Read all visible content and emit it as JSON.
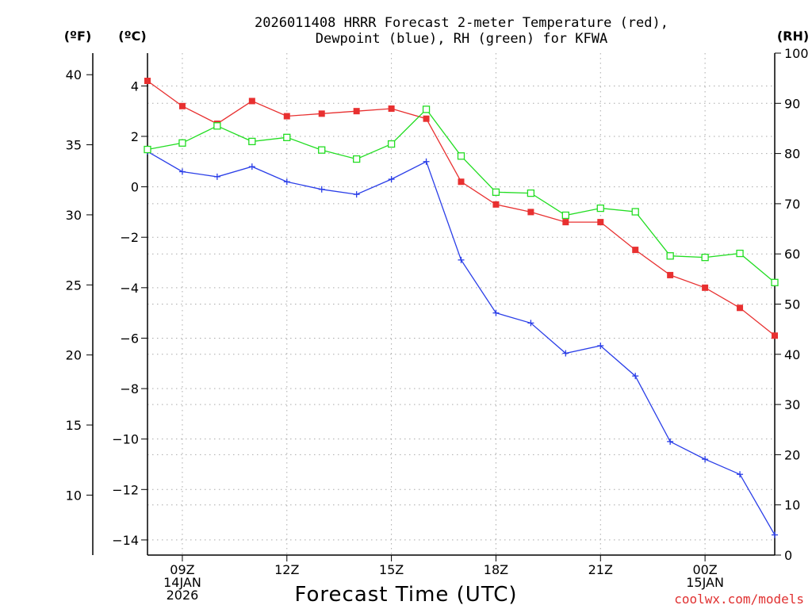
{
  "chart_data": {
    "type": "line",
    "title_line1": "2026011408 HRRR Forecast 2-meter Temperature (red),",
    "title_line2": "Dewpoint (blue), RH (green) for KFWA",
    "xlabel": "Forecast Time (UTC)",
    "credit": "coolwx.com/models",
    "left_unit_f": "(ºF)",
    "left_unit_c": "(ºC)",
    "right_unit": "(RH)",
    "x_hours": [
      8,
      9,
      10,
      11,
      12,
      13,
      14,
      15,
      16,
      17,
      18,
      19,
      20,
      21,
      22,
      23,
      24,
      25,
      26
    ],
    "xlim": [
      8,
      26
    ],
    "x_ticks": [
      {
        "hour": 9,
        "lines": [
          "09Z",
          "14JAN",
          "2026"
        ]
      },
      {
        "hour": 12,
        "lines": [
          "12Z"
        ]
      },
      {
        "hour": 15,
        "lines": [
          "15Z"
        ]
      },
      {
        "hour": 18,
        "lines": [
          "18Z"
        ]
      },
      {
        "hour": 21,
        "lines": [
          "21Z"
        ]
      },
      {
        "hour": 24,
        "lines": [
          "00Z",
          "15JAN"
        ]
      }
    ],
    "celsius_axis": {
      "ylim": [
        -14.6,
        5.3
      ],
      "ticks": [
        4,
        2,
        0,
        -2,
        -4,
        -6,
        -8,
        -10,
        -12,
        -14
      ],
      "labels": [
        "4",
        "2",
        "0",
        "−2",
        "−4",
        "−6",
        "−8",
        "−10",
        "−12",
        "−14"
      ]
    },
    "fahrenheit_axis": {
      "ticks": [
        40,
        35,
        30,
        25,
        20,
        15,
        10
      ],
      "labels": [
        "40",
        "35",
        "30",
        "25",
        "20",
        "15",
        "10"
      ]
    },
    "rh_axis": {
      "ylim": [
        0,
        100
      ],
      "ticks": [
        100,
        90,
        80,
        70,
        60,
        50,
        40,
        30,
        20,
        10,
        0
      ],
      "labels": [
        "100",
        "90",
        "80",
        "70",
        "60",
        "50",
        "40",
        "30",
        "20",
        "10",
        "0"
      ]
    },
    "series": [
      {
        "name": "2-meter Temperature",
        "unit": "C",
        "color": "#e83030",
        "marker": "filled-square",
        "values": [
          4.2,
          3.2,
          2.5,
          3.4,
          2.8,
          2.9,
          3.0,
          3.1,
          2.7,
          0.2,
          -0.7,
          -1.0,
          -1.4,
          -1.4,
          -2.5,
          -3.5,
          -4.0,
          -4.8,
          -5.9
        ]
      },
      {
        "name": "Dewpoint",
        "unit": "C",
        "color": "#2a3ee8",
        "marker": "plus",
        "values": [
          1.4,
          0.6,
          0.4,
          0.8,
          0.2,
          -0.1,
          -0.3,
          0.3,
          1.0,
          -2.9,
          -5.0,
          -5.4,
          -6.6,
          -6.3,
          -7.5,
          -10.1,
          -10.8,
          -11.4,
          -13.8
        ]
      },
      {
        "name": "RH",
        "unit": "%",
        "color": "#22dd22",
        "marker": "open-square",
        "values": [
          80.8,
          82.1,
          85.5,
          82.4,
          83.2,
          80.7,
          78.9,
          81.9,
          88.8,
          79.5,
          72.3,
          72.1,
          67.7,
          69.1,
          68.4,
          59.6,
          59.3,
          60.1,
          54.3
        ]
      }
    ],
    "grid": true
  }
}
